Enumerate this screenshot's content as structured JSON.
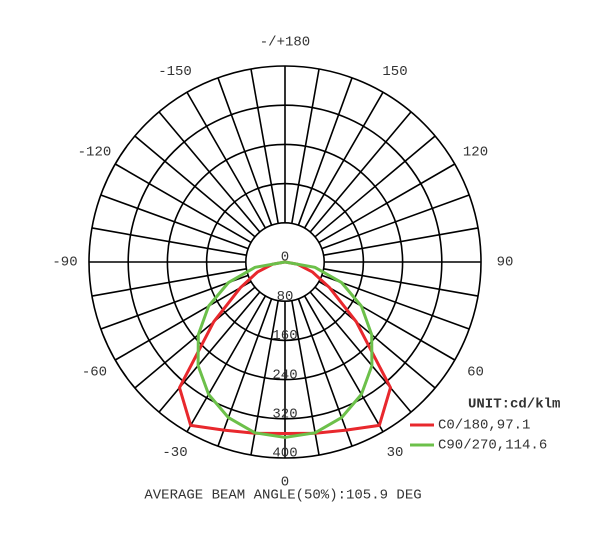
{
  "chart_data": {
    "type": "polar",
    "angles": [
      -90,
      -80,
      -70,
      -60,
      -50,
      -40,
      -30,
      -20,
      -10,
      0,
      10,
      20,
      30,
      40,
      50,
      60,
      70,
      80,
      90
    ],
    "series": [
      {
        "name": "C0/180,97.1",
        "color": "#e8282d",
        "values": [
          0,
          25,
          60,
          105,
          190,
          335,
          385,
          365,
          355,
          350,
          355,
          365,
          385,
          335,
          190,
          105,
          60,
          25,
          0
        ]
      },
      {
        "name": "C90/270,114.6",
        "color": "#6cc04a",
        "values": [
          0,
          62,
          123,
          180,
          231,
          276,
          312,
          338,
          354,
          358,
          354,
          338,
          312,
          276,
          231,
          180,
          123,
          62,
          0
        ]
      }
    ],
    "rlim": [
      0,
      400
    ],
    "rticks": [
      0,
      80,
      160,
      240,
      320,
      400
    ],
    "angle_ticks": [
      {
        "value": 180,
        "label": "-/+180"
      },
      -150,
      -120,
      -90,
      -60,
      -30,
      0,
      30,
      60,
      90,
      120,
      150
    ],
    "spoke_step": 10,
    "unit": "UNIT:cd/klm",
    "annotation": "AVERAGE BEAM ANGLE(50%):105.9 DEG"
  }
}
